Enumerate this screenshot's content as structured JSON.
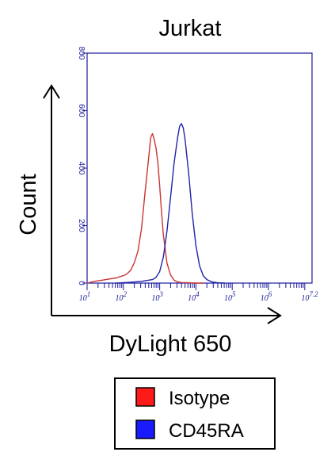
{
  "chart_data": {
    "type": "line",
    "title": "Jurkat",
    "xlabel": "DyLight 650",
    "ylabel": "Count",
    "x_scale": "log",
    "xlim": [
      1,
      7.2
    ],
    "ylim": [
      0,
      800
    ],
    "x_ticks": [
      {
        "value": 1,
        "base": "10",
        "exp": "1"
      },
      {
        "value": 2,
        "base": "10",
        "exp": "2"
      },
      {
        "value": 3,
        "base": "10",
        "exp": "3"
      },
      {
        "value": 4,
        "base": "10",
        "exp": "4"
      },
      {
        "value": 5,
        "base": "10",
        "exp": "5"
      },
      {
        "value": 6,
        "base": "10",
        "exp": "6"
      },
      {
        "value": 7.2,
        "base": "10",
        "exp": "7.2"
      }
    ],
    "y_ticks": [
      "0",
      "200",
      "400",
      "600",
      "800"
    ],
    "legend": {
      "position": "bottom"
    },
    "series": [
      {
        "name": "Isotype",
        "color": "#cc3333",
        "x": [
          1.0,
          1.2,
          1.4,
          1.6,
          1.8,
          2.0,
          2.1,
          2.2,
          2.3,
          2.4,
          2.5,
          2.6,
          2.7,
          2.75,
          2.8,
          2.85,
          2.9,
          2.95,
          3.0,
          3.05,
          3.1,
          3.2,
          3.3,
          3.4,
          3.5,
          3.6,
          3.8,
          4.0,
          4.2
        ],
        "y": [
          0,
          6,
          10,
          14,
          18,
          26,
          32,
          45,
          70,
          110,
          190,
          320,
          440,
          505,
          520,
          500,
          470,
          420,
          340,
          250,
          170,
          70,
          28,
          10,
          4,
          2,
          1,
          0,
          0
        ]
      },
      {
        "name": "CD45RA",
        "color": "#2222aa",
        "x": [
          1.8,
          2.2,
          2.5,
          2.8,
          2.9,
          3.0,
          3.1,
          3.2,
          3.3,
          3.4,
          3.5,
          3.55,
          3.6,
          3.65,
          3.7,
          3.8,
          3.9,
          4.0,
          4.1,
          4.2,
          4.3,
          4.45,
          4.6,
          4.8
        ],
        "y": [
          0,
          3,
          6,
          12,
          20,
          40,
          90,
          180,
          300,
          420,
          510,
          545,
          555,
          540,
          500,
          380,
          240,
          130,
          60,
          26,
          12,
          4,
          1,
          0
        ]
      }
    ]
  }
}
